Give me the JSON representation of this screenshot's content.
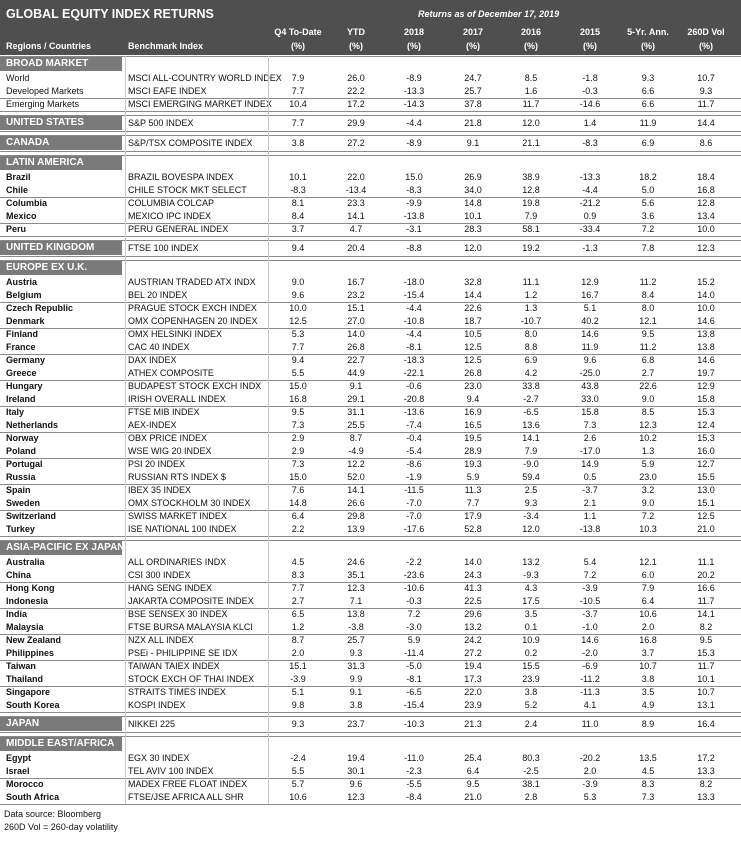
{
  "header": {
    "title": "GLOBAL EQUITY INDEX RETURNS",
    "date_note": "Returns as of December 17, 2019",
    "region_label": "Regions / Countries",
    "benchmark_label": "Benchmark Index",
    "columns": [
      {
        "label": "Q4 To-Date",
        "unit": "(%)"
      },
      {
        "label": "YTD",
        "unit": "(%)"
      },
      {
        "label": "2018",
        "unit": "(%)"
      },
      {
        "label": "2017",
        "unit": "(%)"
      },
      {
        "label": "2016",
        "unit": "(%)"
      },
      {
        "label": "2015",
        "unit": "(%)"
      },
      {
        "label": "5-Yr. Ann.",
        "unit": "(%)"
      },
      {
        "label": "260D Vol",
        "unit": "(%)"
      }
    ]
  },
  "sections": [
    {
      "title": "BROAD MARKET",
      "groups": [
        [
          {
            "name": "World",
            "index": "MSCI ALL-COUNTRY WORLD INDEX",
            "values": [
              "7.9",
              "26.0",
              "-8.9",
              "24.7",
              "8.5",
              "-1.8",
              "9.3",
              "10.7"
            ]
          },
          {
            "name": "Developed Markets",
            "index": "MSCI EAFE INDEX",
            "values": [
              "7.7",
              "22.2",
              "-13.3",
              "25.7",
              "1.6",
              "-0.3",
              "6.6",
              "9.3"
            ]
          }
        ],
        [
          {
            "name": "Emerging Markets",
            "index": "MSCI EMERGING MARKET INDEX",
            "values": [
              "10.4",
              "17.2",
              "-14.3",
              "37.8",
              "11.7",
              "-14.6",
              "6.6",
              "11.7"
            ]
          }
        ]
      ]
    },
    {
      "title": "UNITED STATES",
      "index": "S&P 500 INDEX",
      "values": [
        "7.7",
        "29.9",
        "-4.4",
        "21.8",
        "12.0",
        "1.4",
        "11.9",
        "14.4"
      ]
    },
    {
      "title": "CANADA",
      "index": "S&P/TSX COMPOSITE INDEX",
      "values": [
        "3.8",
        "27.2",
        "-8.9",
        "9.1",
        "21.1",
        "-8.3",
        "6.9",
        "8.6"
      ]
    },
    {
      "title": "LATIN AMERICA",
      "groups": [
        [
          {
            "name": "Brazil",
            "index": "BRAZIL BOVESPA INDEX",
            "values": [
              "10.1",
              "22.0",
              "15.0",
              "26.9",
              "38.9",
              "-13.3",
              "18.2",
              "18.4"
            ]
          },
          {
            "name": "Chile",
            "index": "CHILE STOCK MKT SELECT",
            "values": [
              "-8.3",
              "-13.4",
              "-8.3",
              "34.0",
              "12.8",
              "-4.4",
              "5.0",
              "16.8"
            ]
          }
        ],
        [
          {
            "name": "Columbia",
            "index": "COLUMBIA COLCAP",
            "values": [
              "8.1",
              "23.3",
              "-9.9",
              "14.8",
              "19.8",
              "-21.2",
              "5.6",
              "12.8"
            ]
          },
          {
            "name": "Mexico",
            "index": "MEXICO IPC INDEX",
            "values": [
              "8.4",
              "14.1",
              "-13.8",
              "10.1",
              "7.9",
              "0.9",
              "3.6",
              "13.4"
            ]
          }
        ],
        [
          {
            "name": "Peru",
            "index": "PERU GENERAL INDEX",
            "values": [
              "3.7",
              "4.7",
              "-3.1",
              "28.3",
              "58.1",
              "-33.4",
              "7.2",
              "10.0"
            ]
          }
        ]
      ]
    },
    {
      "title": "UNITED KINGDOM",
      "index": "FTSE 100 INDEX",
      "values": [
        "9.4",
        "20.4",
        "-8.8",
        "12.0",
        "19.2",
        "-1.3",
        "7.8",
        "12.3"
      ]
    },
    {
      "title": "EUROPE EX U.K.",
      "groups": [
        [
          {
            "name": "Austria",
            "index": "AUSTRIAN TRADED ATX INDX",
            "values": [
              "9.0",
              "16.7",
              "-18.0",
              "32.8",
              "11.1",
              "12.9",
              "11.2",
              "15.2"
            ]
          },
          {
            "name": "Belgium",
            "index": "BEL 20 INDEX",
            "values": [
              "9.6",
              "23.2",
              "-15.4",
              "14.4",
              "1.2",
              "16.7",
              "8.4",
              "14.0"
            ]
          }
        ],
        [
          {
            "name": "Czech Republic",
            "index": "PRAGUE STOCK EXCH INDEX",
            "values": [
              "10.0",
              "15.1",
              "-4.4",
              "22.6",
              "1.3",
              "5.1",
              "8.0",
              "10.0"
            ]
          },
          {
            "name": "Denmark",
            "index": "OMX COPENHAGEN 20 INDEX",
            "values": [
              "12.5",
              "27.0",
              "-10.8",
              "18.7",
              "-10.7",
              "40.2",
              "12.1",
              "14.6"
            ]
          }
        ],
        [
          {
            "name": "Finland",
            "index": "OMX HELSINKI INDEX",
            "values": [
              "5.3",
              "14.0",
              "-4.4",
              "10.5",
              "8.0",
              "14.6",
              "9.5",
              "13.8"
            ]
          },
          {
            "name": "France",
            "index": "CAC 40 INDEX",
            "values": [
              "7.7",
              "26.8",
              "-8.1",
              "12.5",
              "8.8",
              "11.9",
              "11.2",
              "13.8"
            ]
          }
        ],
        [
          {
            "name": "Germany",
            "index": "DAX INDEX",
            "values": [
              "9.4",
              "22.7",
              "-18.3",
              "12.5",
              "6.9",
              "9.6",
              "6.8",
              "14.6"
            ]
          },
          {
            "name": "Greece",
            "index": "ATHEX COMPOSITE",
            "values": [
              "5.5",
              "44.9",
              "-22.1",
              "26.8",
              "4.2",
              "-25.0",
              "2.7",
              "19.7"
            ]
          }
        ],
        [
          {
            "name": "Hungary",
            "index": "BUDAPEST STOCK EXCH INDX",
            "values": [
              "15.0",
              "9.1",
              "-0.6",
              "23.0",
              "33.8",
              "43.8",
              "22.6",
              "12.9"
            ]
          },
          {
            "name": "Ireland",
            "index": "IRISH OVERALL INDEX",
            "values": [
              "16.8",
              "29.1",
              "-20.8",
              "9.4",
              "-2.7",
              "33.0",
              "9.0",
              "15.8"
            ]
          }
        ],
        [
          {
            "name": "Italy",
            "index": "FTSE MIB INDEX",
            "values": [
              "9.5",
              "31.1",
              "-13.6",
              "16.9",
              "-6.5",
              "15.8",
              "8.5",
              "15.3"
            ]
          },
          {
            "name": "Netherlands",
            "index": "AEX-INDEX",
            "values": [
              "7.3",
              "25.5",
              "-7.4",
              "16.5",
              "13.6",
              "7.3",
              "12.3",
              "12.4"
            ]
          }
        ],
        [
          {
            "name": "Norway",
            "index": "OBX PRICE INDEX",
            "values": [
              "2.9",
              "8.7",
              "-0.4",
              "19.5",
              "14.1",
              "2.6",
              "10.2",
              "15.3"
            ]
          },
          {
            "name": "Poland",
            "index": "WSE WIG 20 INDEX",
            "values": [
              "2.9",
              "-4.9",
              "-5.4",
              "28.9",
              "7.9",
              "-17.0",
              "1.3",
              "16.0"
            ]
          }
        ],
        [
          {
            "name": "Portugal",
            "index": "PSI 20 INDEX",
            "values": [
              "7.3",
              "12.2",
              "-8.6",
              "19.3",
              "-9.0",
              "14.9",
              "5.9",
              "12.7"
            ]
          },
          {
            "name": "Russia",
            "index": "RUSSIAN RTS INDEX $",
            "values": [
              "15.0",
              "52.0",
              "-1.9",
              "5.9",
              "59.4",
              "0.5",
              "23.0",
              "15.5"
            ]
          }
        ],
        [
          {
            "name": "Spain",
            "index": "IBEX 35 INDEX",
            "values": [
              "7.6",
              "14.1",
              "-11.5",
              "11.3",
              "2.5",
              "-3.7",
              "3.2",
              "13.0"
            ]
          },
          {
            "name": "Sweden",
            "index": "OMX STOCKHOLM 30 INDEX",
            "values": [
              "14.8",
              "26.6",
              "-7.0",
              "7.7",
              "9.3",
              "2.1",
              "9.0",
              "15.1"
            ]
          }
        ],
        [
          {
            "name": "Switzerland",
            "index": "SWISS MARKET INDEX",
            "values": [
              "6.4",
              "29.8",
              "-7.0",
              "17.9",
              "-3.4",
              "1.1",
              "7.2",
              "12.5"
            ]
          },
          {
            "name": "Turkey",
            "index": "ISE NATIONAL 100 INDEX",
            "values": [
              "2.2",
              "13.9",
              "-17.6",
              "52.8",
              "12.0",
              "-13.8",
              "10.3",
              "21.0"
            ]
          }
        ]
      ]
    },
    {
      "title": "ASIA-PACIFIC EX JAPAN",
      "groups": [
        [
          {
            "name": "Australia",
            "index": "ALL ORDINARIES INDX",
            "values": [
              "4.5",
              "24.6",
              "-2.2",
              "14.0",
              "13.2",
              "5.4",
              "12.1",
              "11.1"
            ]
          },
          {
            "name": "China",
            "index": "CSI 300 INDEX",
            "values": [
              "8.3",
              "35.1",
              "-23.6",
              "24.3",
              "-9.3",
              "7.2",
              "6.0",
              "20.2"
            ]
          }
        ],
        [
          {
            "name": "Hong Kong",
            "index": "HANG SENG INDEX",
            "values": [
              "7.7",
              "12.3",
              "-10.6",
              "41.3",
              "4.3",
              "-3.9",
              "7.9",
              "16.6"
            ]
          },
          {
            "name": "Indonesia",
            "index": "JAKARTA COMPOSITE INDEX",
            "values": [
              "2.7",
              "7.1",
              "-0.3",
              "22.5",
              "17.5",
              "-10.5",
              "6.4",
              "11.7"
            ]
          }
        ],
        [
          {
            "name": "India",
            "index": "BSE SENSEX 30 INDEX",
            "values": [
              "6.5",
              "13.8",
              "7.2",
              "29.6",
              "3.5",
              "-3.7",
              "10.6",
              "14.1"
            ]
          },
          {
            "name": "Malaysia",
            "index": "FTSE BURSA MALAYSIA KLCI",
            "values": [
              "1.2",
              "-3.8",
              "-3.0",
              "13.2",
              "0.1",
              "-1.0",
              "2.0",
              "8.2"
            ]
          }
        ],
        [
          {
            "name": "New Zealand",
            "index": "NZX ALL INDEX",
            "values": [
              "8.7",
              "25.7",
              "5.9",
              "24.2",
              "10.9",
              "14.6",
              "16.8",
              "9.5"
            ]
          },
          {
            "name": "Philippines",
            "index": "PSEi - PHILIPPINE SE IDX",
            "values": [
              "2.0",
              "9.3",
              "-11.4",
              "27.2",
              "0.2",
              "-2.0",
              "3.7",
              "15.3"
            ]
          }
        ],
        [
          {
            "name": "Taiwan",
            "index": "TAIWAN TAIEX INDEX",
            "values": [
              "15.1",
              "31.3",
              "-5.0",
              "19.4",
              "15.5",
              "-6.9",
              "10.7",
              "11.7"
            ]
          },
          {
            "name": "Thailand",
            "index": "STOCK EXCH OF THAI INDEX",
            "values": [
              "-3.9",
              "9.9",
              "-8.1",
              "17.3",
              "23.9",
              "-11.2",
              "3.8",
              "10.1"
            ]
          }
        ],
        [
          {
            "name": "Singapore",
            "index": "STRAITS TIMES INDEX",
            "values": [
              "5.1",
              "9.1",
              "-6.5",
              "22.0",
              "3.8",
              "-11.3",
              "3.5",
              "10.7"
            ]
          },
          {
            "name": "South Korea",
            "index": "KOSPI INDEX",
            "values": [
              "9.8",
              "3.8",
              "-15.4",
              "23.9",
              "5.2",
              "4.1",
              "4.9",
              "13.1"
            ]
          }
        ]
      ]
    },
    {
      "title": "JAPAN",
      "index": "NIKKEI 225",
      "values": [
        "9.3",
        "23.7",
        "-10.3",
        "21.3",
        "2.4",
        "11.0",
        "8.9",
        "16.4"
      ]
    },
    {
      "title": "MIDDLE EAST/AFRICA",
      "groups": [
        [
          {
            "name": "Egypt",
            "index": "EGX 30 INDEX",
            "values": [
              "-2.4",
              "19.4",
              "-11.0",
              "25.4",
              "80.3",
              "-20.2",
              "13.5",
              "17.2"
            ]
          },
          {
            "name": "Israel",
            "index": "TEL AVIV 100 INDEX",
            "values": [
              "5.5",
              "30.1",
              "-2.3",
              "6.4",
              "-2.5",
              "2.0",
              "4.5",
              "13.3"
            ]
          }
        ],
        [
          {
            "name": "Morocco",
            "index": "MADEX FREE FLOAT INDEX",
            "values": [
              "5.7",
              "9.6",
              "-5.5",
              "9.5",
              "38.1",
              "-3.9",
              "8.3",
              "8.2"
            ]
          },
          {
            "name": "South Africa",
            "index": "FTSE/JSE AFRICA ALL SHR",
            "values": [
              "10.6",
              "12.3",
              "-8.4",
              "21.0",
              "2.8",
              "5.3",
              "7.3",
              "13.3"
            ]
          }
        ]
      ]
    }
  ],
  "footer": {
    "source": "Data source: Bloomberg",
    "note": "260D Vol = 260-day volatility"
  }
}
